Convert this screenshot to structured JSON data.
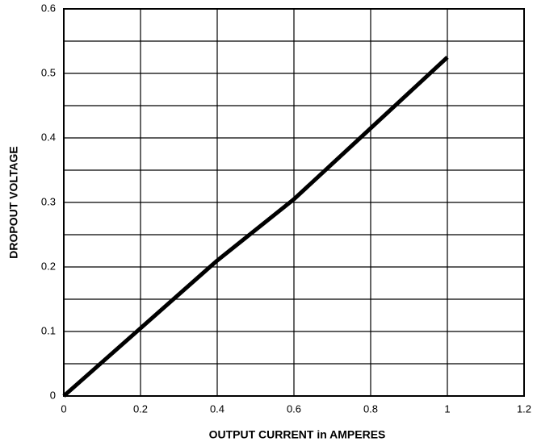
{
  "chart_data": {
    "type": "line",
    "x_label": "OUTPUT CURRENT in AMPERES",
    "y_label": "DROPOUT VOLTAGE",
    "x": [
      0,
      0.2,
      0.4,
      0.6,
      0.8,
      1.0
    ],
    "series": [
      {
        "color": "#000000",
        "values": [
          0,
          0.105,
          0.21,
          0.305,
          0.415,
          0.525
        ]
      }
    ],
    "xlim": [
      0,
      1.2
    ],
    "xticks": [
      0,
      0.2,
      0.4,
      0.6,
      0.8,
      1.0,
      1.2
    ],
    "ylim": [
      0,
      0.6
    ],
    "yticks": [
      0,
      0.1,
      0.2,
      0.3,
      0.4,
      0.5,
      0.6
    ],
    "ygrid_minor": [
      0.05,
      0.15,
      0.25,
      0.35,
      0.45,
      0.55
    ],
    "grid": true
  }
}
